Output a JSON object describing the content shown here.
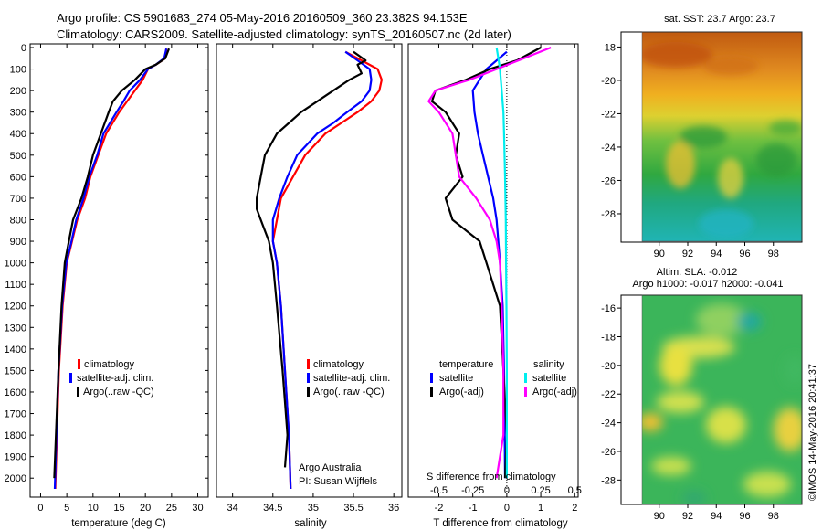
{
  "header": {
    "line1": "Argo profile: CS 5901683_274 05-May-2016 20160509_360 23.382S 94.153E",
    "line2": "Climatology: CARS2009. Satellite-adjusted climatology: synTS_20160507.nc (2d later)"
  },
  "colors": {
    "red": "#ff0000",
    "blue": "#0000ff",
    "black": "#000000",
    "cyan": "#00eeee",
    "magenta": "#ff00ff"
  },
  "chart_data": [
    {
      "type": "line",
      "ylabel": "",
      "xlabel": "temperature (deg C)",
      "xlim": [
        -2,
        32
      ],
      "ylim": [
        2080,
        0
      ],
      "xticks": [
        0,
        5,
        10,
        15,
        20,
        25,
        30
      ],
      "yticks": [
        0,
        100,
        200,
        300,
        400,
        500,
        600,
        700,
        800,
        900,
        1000,
        1100,
        1200,
        1300,
        1400,
        1500,
        1600,
        1700,
        1800,
        1900,
        2000
      ],
      "legend": [
        "climatology",
        "satellite-adj. clim.",
        "Argo(..raw -QC)"
      ],
      "series": [
        {
          "name": "climatology",
          "color": "#ff0000",
          "y": [
            5,
            50,
            80,
            100,
            150,
            200,
            250,
            300,
            400,
            500,
            600,
            700,
            800,
            900,
            1000,
            1200,
            1500,
            2050
          ],
          "x": [
            24,
            23.8,
            22,
            20.5,
            19.5,
            18,
            16.5,
            15,
            12.5,
            11,
            9.5,
            8.5,
            7,
            6,
            5,
            4.2,
            3.5,
            2.8
          ]
        },
        {
          "name": "satellite-adj. clim.",
          "color": "#0000ff",
          "y": [
            5,
            50,
            80,
            100,
            150,
            200,
            250,
            300,
            400,
            500,
            600,
            700,
            800,
            900,
            1000,
            1200,
            1500,
            2050
          ],
          "x": [
            24,
            23.6,
            22,
            20.5,
            19,
            17,
            15.8,
            14.5,
            12,
            10.8,
            9.3,
            8.2,
            6.8,
            5.9,
            4.9,
            4.1,
            3.4,
            2.7
          ]
        },
        {
          "name": "Argo(..raw -QC)",
          "color": "#000000",
          "y": [
            5,
            50,
            80,
            100,
            150,
            200,
            250,
            300,
            400,
            500,
            600,
            700,
            800,
            900,
            1000,
            1200,
            1500,
            2000
          ],
          "x": [
            24.5,
            23.8,
            22,
            20,
            18,
            15.5,
            13.8,
            13,
            11.5,
            10,
            9,
            7.8,
            6.2,
            5.4,
            4.6,
            4,
            3.4,
            2.6
          ]
        }
      ]
    },
    {
      "type": "line",
      "xlabel": "salinity",
      "xlim": [
        33.8,
        36.1
      ],
      "ylim": [
        2080,
        0
      ],
      "xticks": [
        34,
        34.5,
        35,
        35.5,
        36
      ],
      "legend": [
        "climatology",
        "satellite-adj. clim.",
        "Argo(..raw -QC)"
      ],
      "annotation": [
        "Argo Australia",
        "PI: Susan Wijffels"
      ],
      "series": [
        {
          "name": "climatology",
          "color": "#ff0000",
          "y": [
            20,
            60,
            100,
            150,
            200,
            250,
            300,
            350,
            400,
            500,
            600,
            700,
            800,
            900,
            1000,
            1200,
            1500,
            1800,
            2050
          ],
          "x": [
            35.4,
            35.6,
            35.8,
            35.85,
            35.82,
            35.72,
            35.55,
            35.35,
            35.15,
            34.9,
            34.75,
            34.6,
            34.55,
            34.5,
            34.55,
            34.6,
            34.65,
            34.7,
            34.72
          ]
        },
        {
          "name": "satellite-adj. clim.",
          "color": "#0000ff",
          "y": [
            20,
            60,
            100,
            150,
            200,
            250,
            300,
            350,
            400,
            500,
            600,
            700,
            800,
            900,
            1000,
            1200,
            1500,
            1800,
            2050
          ],
          "x": [
            35.4,
            35.55,
            35.7,
            35.72,
            35.7,
            35.6,
            35.42,
            35.25,
            35.05,
            34.8,
            34.68,
            34.58,
            34.5,
            34.5,
            34.55,
            34.6,
            34.65,
            34.7,
            34.72
          ]
        },
        {
          "name": "Argo(..raw -QC)",
          "color": "#000000",
          "y": [
            20,
            60,
            80,
            120,
            150,
            200,
            250,
            300,
            350,
            400,
            500,
            600,
            700,
            750,
            800,
            900,
            1000,
            1200,
            1500,
            1800,
            1950
          ],
          "x": [
            35.5,
            35.65,
            35.55,
            35.6,
            35.45,
            35.25,
            35.05,
            34.85,
            34.7,
            34.55,
            34.4,
            34.35,
            34.3,
            34.3,
            34.35,
            34.45,
            34.5,
            34.55,
            34.62,
            34.68,
            34.65
          ]
        }
      ]
    },
    {
      "type": "line",
      "xlabel": "T difference from climatology",
      "xlabel2": "S difference from climatology",
      "xlim": [
        -2.9,
        2.1
      ],
      "ylim": [
        2080,
        0
      ],
      "xticks": [
        -2,
        -1,
        0,
        1,
        2
      ],
      "xticks_s": [
        "-0.5",
        "-0.25",
        "0",
        "0.25",
        "0.5"
      ],
      "legend_title_t": "temperature",
      "legend_title_s": "salinity",
      "legend_t": [
        "satellite",
        "Argo(-adj)"
      ],
      "legend_s": [
        "satellite",
        "Argo(-adj)"
      ],
      "series": [
        {
          "name": "T satellite",
          "color": "#0000ff",
          "y": [
            20,
            100,
            150,
            200,
            300,
            400,
            500,
            600,
            700,
            800,
            900,
            1000,
            1200,
            1500,
            2000
          ],
          "x": [
            0,
            -0.6,
            -0.8,
            -1,
            -0.95,
            -0.85,
            -0.7,
            -0.55,
            -0.4,
            -0.3,
            -0.25,
            -0.2,
            -0.12,
            -0.08,
            -0.05
          ]
        },
        {
          "name": "T Argo(-adj)",
          "color": "#000000",
          "y": [
            0,
            60,
            100,
            150,
            200,
            250,
            300,
            400,
            500,
            600,
            700,
            800,
            900,
            1000,
            1100,
            1200,
            1500,
            1800,
            2000
          ],
          "x": [
            1,
            0.3,
            -0.5,
            -1.2,
            -2.1,
            -2.2,
            -1.8,
            -1.4,
            -1.5,
            -1.3,
            -1.8,
            -1.6,
            -0.8,
            -0.6,
            -0.4,
            -0.2,
            -0.1,
            0,
            -0.05
          ]
        },
        {
          "name": "S satellite",
          "color": "#00eeee",
          "y": [
            0,
            50,
            100,
            200,
            300,
            400,
            600,
            800,
            1000,
            1200,
            1500,
            1800,
            2000
          ],
          "x": [
            -0.3,
            -0.25,
            -0.2,
            -0.15,
            -0.1,
            -0.08,
            -0.05,
            -0.03,
            -0.02,
            -0.01,
            0,
            0,
            0
          ]
        },
        {
          "name": "S Argo(-adj)",
          "color": "#ff00ff",
          "y": [
            0,
            50,
            100,
            150,
            200,
            250,
            300,
            400,
            500,
            600,
            700,
            800,
            900,
            1000,
            1200,
            1500,
            1800,
            1900,
            2000
          ],
          "x": [
            1.3,
            0.5,
            -0.3,
            -1.1,
            -2.1,
            -2.3,
            -2,
            -1.6,
            -1.5,
            -1.4,
            -0.9,
            -0.5,
            -0.3,
            -0.2,
            -0.15,
            -0.1,
            -0.1,
            -0.2,
            -0.3
          ]
        }
      ]
    },
    {
      "type": "heatmap",
      "title": "sat. SST: 23.7  Argo: 23.7",
      "xticks": [
        90,
        92,
        94,
        96,
        98
      ],
      "yticks": [
        -18,
        -20,
        -22,
        -24,
        -26,
        -28
      ]
    },
    {
      "type": "heatmap",
      "title": "Altim. SLA: -0.012",
      "title2": "Argo h1000: -0.017 h2000: -0.041",
      "xticks": [
        90,
        92,
        94,
        96,
        98
      ],
      "yticks": [
        -16,
        -18,
        -20,
        -22,
        -24,
        -26,
        -28
      ]
    }
  ],
  "stamp": "©IMOS 14-May-2016 20:41:37"
}
